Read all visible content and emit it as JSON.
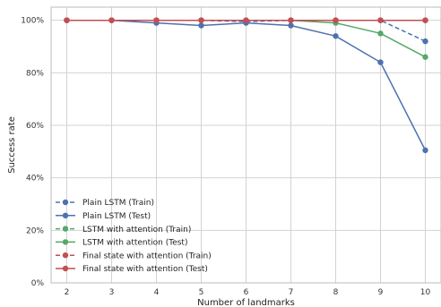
{
  "chart_data": {
    "type": "line",
    "title": "",
    "xlabel": "Number of landmarks",
    "ylabel": "Success rate",
    "x": [
      2,
      3,
      4,
      5,
      6,
      7,
      8,
      9,
      10
    ],
    "xlim": [
      1.65,
      10.35
    ],
    "ylim": [
      0,
      105
    ],
    "yticks": [
      0,
      20,
      40,
      60,
      80,
      100
    ],
    "ytick_labels": [
      "0%",
      "20%",
      "40%",
      "60%",
      "80%",
      "100%"
    ],
    "grid": true,
    "legend_position": "lower-left",
    "series": [
      {
        "name": "Plain LSTM (Train)",
        "color": "#4c72b0",
        "style": "dashed",
        "values": [
          100,
          100,
          100,
          100,
          99.5,
          100,
          100,
          100,
          92
        ]
      },
      {
        "name": "Plain LSTM (Test)",
        "color": "#4c72b0",
        "style": "solid",
        "values": [
          100,
          100,
          99,
          98,
          99,
          98,
          94,
          84,
          50.5
        ]
      },
      {
        "name": "LSTM with attention (Train)",
        "color": "#55a868",
        "style": "dashed",
        "values": [
          100,
          100,
          100,
          100,
          100,
          100,
          100,
          100,
          100
        ]
      },
      {
        "name": "LSTM with attention (Test)",
        "color": "#55a868",
        "style": "solid",
        "values": [
          100,
          100,
          100,
          100,
          100,
          100,
          99,
          95,
          86
        ]
      },
      {
        "name": "Final state with attention (Train)",
        "color": "#c44e52",
        "style": "dashed",
        "values": [
          100,
          100,
          100,
          100,
          100,
          100,
          100,
          100,
          100
        ]
      },
      {
        "name": "Final state with attention (Test)",
        "color": "#c44e52",
        "style": "solid",
        "values": [
          100,
          100,
          100,
          100,
          100,
          100,
          100,
          100,
          100
        ]
      }
    ]
  }
}
